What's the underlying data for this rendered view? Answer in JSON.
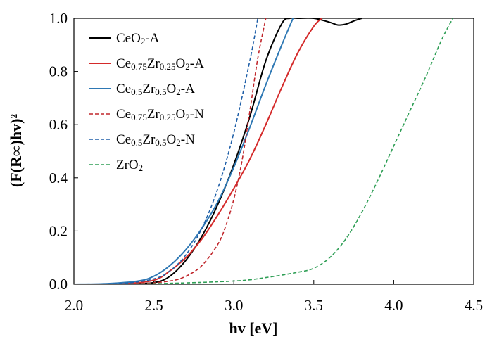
{
  "chart_data": {
    "type": "line",
    "title": "",
    "xlabel": "hv [eV]",
    "ylabel": "(F(R∞)hv)²",
    "xlim": [
      2.0,
      4.5
    ],
    "ylim": [
      0.0,
      1.0
    ],
    "xticks": [
      2.0,
      2.5,
      3.0,
      3.5,
      4.0,
      4.5
    ],
    "yticks": [
      0.0,
      0.2,
      0.4,
      0.6,
      0.8,
      1.0
    ],
    "xtick_labels": [
      "2.0",
      "2.5",
      "3.0",
      "3.5",
      "4.0",
      "4.5"
    ],
    "ytick_labels": [
      "0.0",
      "0.2",
      "0.4",
      "0.6",
      "0.8",
      "1.0"
    ],
    "grid": false,
    "legend_position": "top-left",
    "series": [
      {
        "name": "CeO2-A",
        "label_parts": [
          [
            "CeO",
            ""
          ],
          [
            "2",
            "sub"
          ],
          [
            "-A",
            ""
          ]
        ],
        "color": "#000000",
        "dash": "solid",
        "x": [
          2.0,
          2.3,
          2.5,
          2.6,
          2.7,
          2.8,
          2.9,
          3.0,
          3.1,
          3.2,
          3.3,
          3.35,
          3.4,
          3.5,
          3.6,
          3.65,
          3.7,
          3.75,
          3.8
        ],
        "y": [
          0.0,
          0.0,
          0.006,
          0.03,
          0.09,
          0.18,
          0.3,
          0.45,
          0.63,
          0.84,
          0.98,
          1.0,
          1.0,
          1.0,
          0.985,
          0.975,
          0.978,
          0.99,
          1.0
        ]
      },
      {
        "name": "Ce0.75Zr0.25O2-A",
        "label_parts": [
          [
            "Ce",
            ""
          ],
          [
            "0.75",
            "sub"
          ],
          [
            "Zr",
            ""
          ],
          [
            "0.25",
            "sub"
          ],
          [
            "O",
            ""
          ],
          [
            "2",
            "sub"
          ],
          [
            "-A",
            ""
          ]
        ],
        "color": "#d42a2a",
        "dash": "solid",
        "x": [
          2.0,
          2.3,
          2.5,
          2.6,
          2.7,
          2.8,
          2.9,
          3.0,
          3.1,
          3.2,
          3.3,
          3.4,
          3.5,
          3.55
        ],
        "y": [
          0.0,
          0.002,
          0.015,
          0.05,
          0.1,
          0.17,
          0.26,
          0.36,
          0.47,
          0.6,
          0.74,
          0.87,
          0.97,
          1.0
        ]
      },
      {
        "name": "Ce0.5Zr0.5O2-A",
        "label_parts": [
          [
            "Ce",
            ""
          ],
          [
            "0.5",
            "sub"
          ],
          [
            "Zr",
            ""
          ],
          [
            "0.5",
            "sub"
          ],
          [
            "O",
            ""
          ],
          [
            "2",
            "sub"
          ],
          [
            "-A",
            ""
          ]
        ],
        "color": "#2e78b4",
        "dash": "solid",
        "x": [
          2.0,
          2.2,
          2.4,
          2.5,
          2.6,
          2.7,
          2.8,
          2.9,
          3.0,
          3.1,
          3.2,
          3.3,
          3.37
        ],
        "y": [
          0.0,
          0.002,
          0.012,
          0.03,
          0.07,
          0.13,
          0.21,
          0.31,
          0.44,
          0.59,
          0.75,
          0.9,
          1.0
        ]
      },
      {
        "name": "Ce0.75Zr0.25O2-N",
        "label_parts": [
          [
            "Ce",
            ""
          ],
          [
            "0.75",
            "sub"
          ],
          [
            "Zr",
            ""
          ],
          [
            "0.25",
            "sub"
          ],
          [
            "O",
            ""
          ],
          [
            "2",
            "sub"
          ],
          [
            "-N",
            ""
          ]
        ],
        "color": "#c0262b",
        "dash": "dashed",
        "x": [
          2.0,
          2.4,
          2.6,
          2.7,
          2.8,
          2.9,
          2.95,
          3.0,
          3.05,
          3.1,
          3.15,
          3.2
        ],
        "y": [
          0.0,
          0.002,
          0.012,
          0.03,
          0.07,
          0.15,
          0.22,
          0.32,
          0.46,
          0.65,
          0.85,
          1.0
        ]
      },
      {
        "name": "Ce0.5Zr0.5O2-N",
        "label_parts": [
          [
            "Ce",
            ""
          ],
          [
            "0.5",
            "sub"
          ],
          [
            "Zr",
            ""
          ],
          [
            "0.5",
            "sub"
          ],
          [
            "O",
            ""
          ],
          [
            "2",
            "sub"
          ],
          [
            "-N",
            ""
          ]
        ],
        "color": "#1f5fa8",
        "dash": "dashed",
        "x": [
          2.0,
          2.3,
          2.5,
          2.6,
          2.7,
          2.8,
          2.9,
          3.0,
          3.1,
          3.15
        ],
        "y": [
          0.0,
          0.003,
          0.02,
          0.05,
          0.11,
          0.21,
          0.36,
          0.57,
          0.84,
          1.0
        ]
      },
      {
        "name": "ZrO2",
        "label_parts": [
          [
            "ZrO",
            ""
          ],
          [
            "2",
            "sub"
          ]
        ],
        "color": "#2e9e55",
        "dash": "dashed",
        "x": [
          2.0,
          2.5,
          3.0,
          3.2,
          3.4,
          3.5,
          3.6,
          3.7,
          3.8,
          3.9,
          4.0,
          4.1,
          4.2,
          4.3,
          4.37
        ],
        "y": [
          0.0,
          0.002,
          0.012,
          0.025,
          0.045,
          0.06,
          0.1,
          0.17,
          0.27,
          0.39,
          0.52,
          0.65,
          0.78,
          0.92,
          1.0
        ]
      }
    ]
  }
}
